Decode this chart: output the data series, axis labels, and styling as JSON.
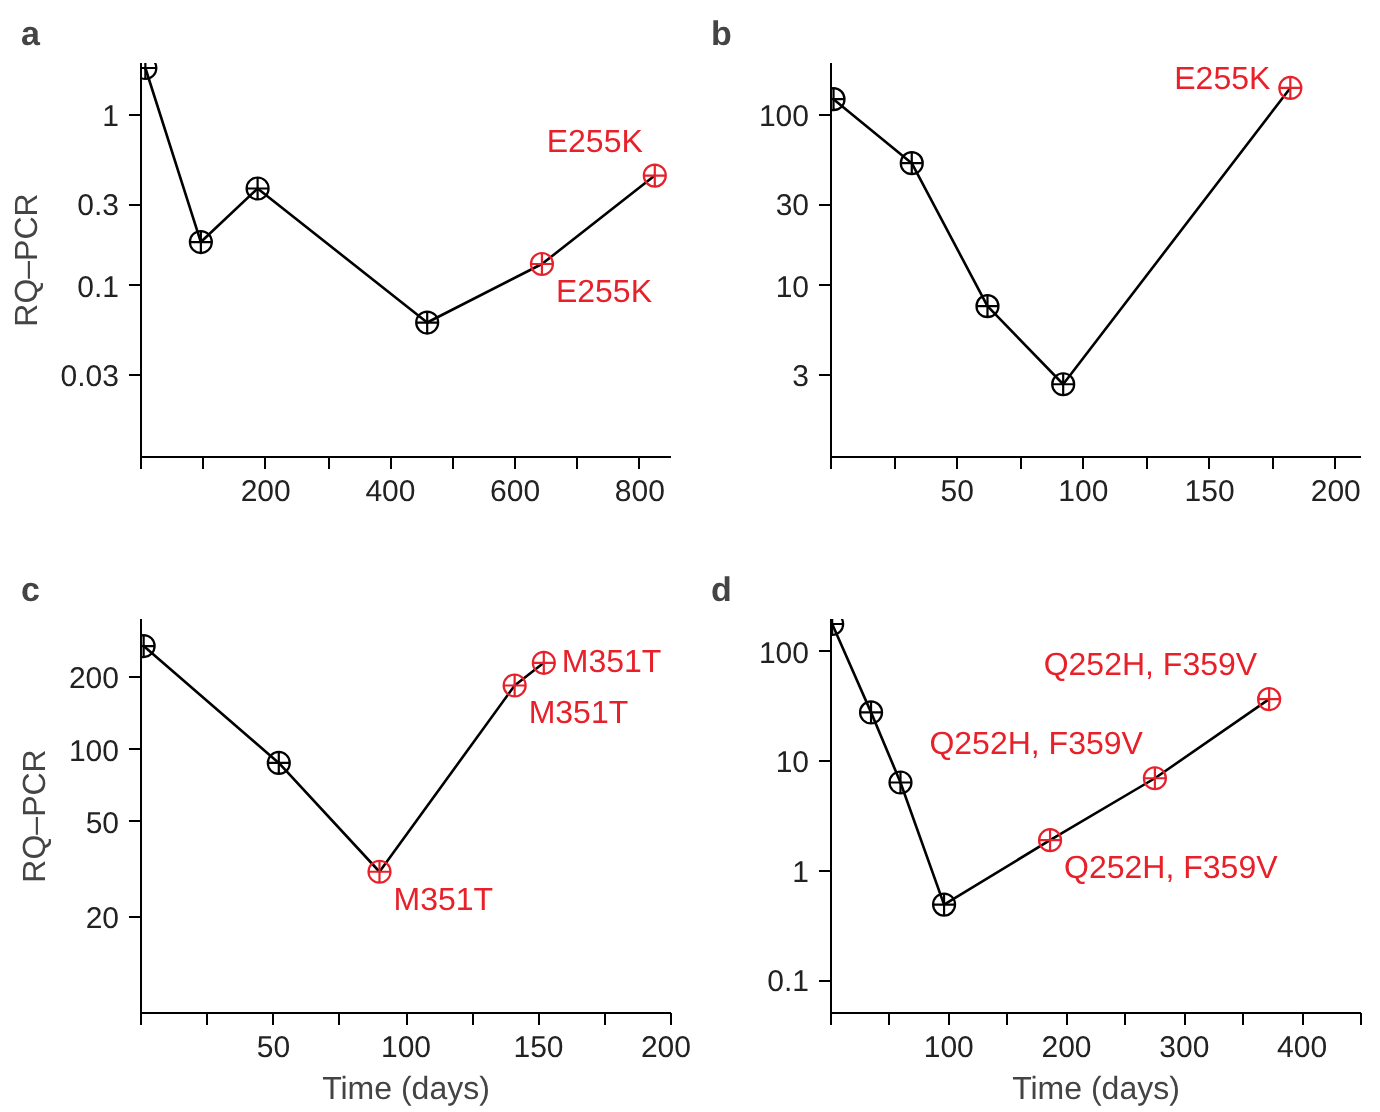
{
  "chart_data": [
    {
      "type": "line",
      "title": "a",
      "ylabel": "RQ–PCR",
      "log": "y",
      "marker": "circle",
      "line_style": "solid",
      "grid": false,
      "x": [
        7,
        96,
        187,
        459,
        643,
        824
      ],
      "series": [
        {
          "color": "#000000",
          "colors": [
            "#000000",
            "#000000",
            "#000000",
            "#000000",
            "#e8202a",
            "#e8202a"
          ],
          "values": [
            1.87,
            0.18,
            0.37,
            0.061,
            0.134,
            0.44
          ]
        }
      ],
      "xlim": [
        0,
        850
      ],
      "xticks": [
        {
          "value": 0,
          "label": null
        },
        {
          "value": 100,
          "label": null
        },
        200,
        {
          "value": 300,
          "label": null
        },
        400,
        {
          "value": 500,
          "label": null
        },
        600,
        {
          "value": 700,
          "label": null
        },
        800
      ],
      "ylim": [
        0.01,
        2
      ],
      "yticks": [
        0.03,
        0.1,
        0.3,
        1
      ],
      "annotations": [
        {
          "text": "E255K",
          "x": 643,
          "y": 0.134
        },
        {
          "text": "E255K",
          "x": 824,
          "y": 0.44
        }
      ]
    },
    {
      "type": "line",
      "title": "b",
      "log": "y",
      "marker": "circle",
      "line_style": "solid",
      "grid": false,
      "x": [
        1,
        32,
        62,
        92,
        182
      ],
      "series": [
        {
          "color": "#000000",
          "colors": [
            "#000000",
            "#000000",
            "#000000",
            "#000000",
            "#e8202a"
          ],
          "values": [
            123,
            52,
            7.6,
            2.66,
            143
          ]
        }
      ],
      "xlim": [
        0,
        210
      ],
      "xticks": [
        {
          "value": 0,
          "label": null
        },
        {
          "value": 25,
          "label": null
        },
        50,
        {
          "value": 75,
          "label": null
        },
        100,
        {
          "value": 125,
          "label": null
        },
        150,
        {
          "value": 175,
          "label": null
        },
        200
      ],
      "ylim": [
        1,
        200
      ],
      "yticks": [
        3,
        10,
        30,
        100
      ],
      "annotations": [
        {
          "text": "E255K",
          "x": 182,
          "y": 143
        }
      ]
    },
    {
      "type": "line",
      "title": "c",
      "ylabel": "RQ–PCR",
      "xlabel": "Time (days)",
      "log": "y",
      "marker": "circle",
      "line_style": "solid",
      "grid": false,
      "x": [
        1,
        52,
        90,
        141,
        152
      ],
      "series": [
        {
          "color": "#000000",
          "colors": [
            "#000000",
            "#000000",
            "#e8202a",
            "#e8202a",
            "#e8202a"
          ],
          "values": [
            270,
            88,
            31,
            185,
            230
          ]
        }
      ],
      "xlim": [
        0,
        200
      ],
      "xticks": [
        {
          "value": 0,
          "label": null
        },
        {
          "value": 25,
          "label": null
        },
        50,
        {
          "value": 75,
          "label": null
        },
        100,
        {
          "value": 125,
          "label": null
        },
        150,
        {
          "value": 175,
          "label": null
        },
        200
      ],
      "ylim": [
        8,
        350
      ],
      "yticks": [
        20,
        50,
        100,
        200
      ],
      "annotations": [
        {
          "text": "M351T",
          "x": 90,
          "y": 31
        },
        {
          "text": "M351T",
          "x": 141,
          "y": 185
        },
        {
          "text": "M351T",
          "x": 152,
          "y": 230
        }
      ]
    },
    {
      "type": "line",
      "title": "d",
      "xlabel": "Time (days)",
      "log": "y",
      "marker": "circle",
      "line_style": "solid",
      "grid": false,
      "x": [
        1,
        34,
        59,
        96,
        186,
        275,
        372
      ],
      "series": [
        {
          "color": "#000000",
          "colors": [
            "#000000",
            "#000000",
            "#000000",
            "#000000",
            "#e8202a",
            "#e8202a",
            "#e8202a"
          ],
          "values": [
            180,
            28,
            6.4,
            0.49,
            1.9,
            7,
            37
          ]
        }
      ],
      "xlim": [
        0,
        450
      ],
      "xticks": [
        {
          "value": 0,
          "label": null
        },
        {
          "value": 50,
          "label": null
        },
        100,
        {
          "value": 150,
          "label": null
        },
        200,
        {
          "value": 250,
          "label": null
        },
        300,
        {
          "value": 350,
          "label": null
        },
        400,
        {
          "value": 450,
          "label": null
        }
      ],
      "ylim": [
        0.05,
        200
      ],
      "yticks": [
        0.1,
        1,
        10,
        100
      ],
      "annotations": [
        {
          "text": "Q252H, F359V",
          "x": 186,
          "y": 1.9
        },
        {
          "text": "Q252H, F359V",
          "x": 275,
          "y": 7
        },
        {
          "text": "Q252H, F359V",
          "x": 372,
          "y": 37
        }
      ]
    }
  ]
}
